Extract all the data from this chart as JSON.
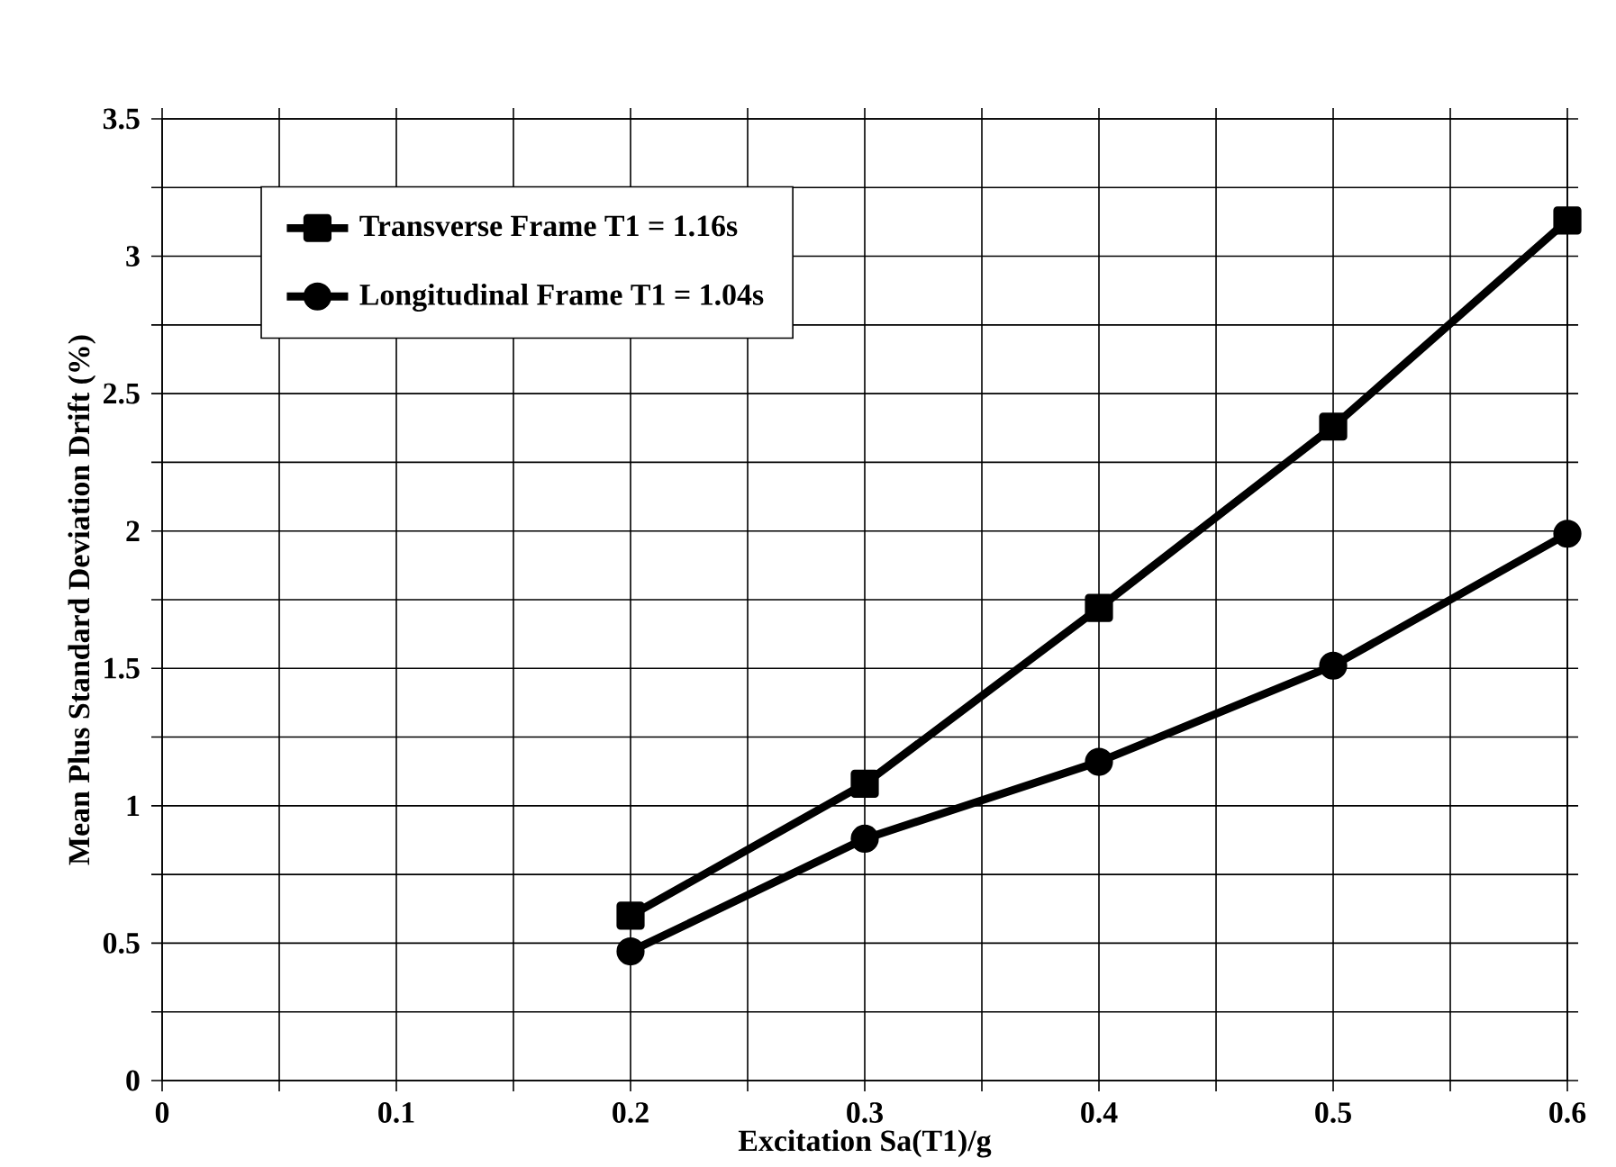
{
  "chart_data": {
    "type": "line",
    "xlabel": "Excitation    Sa(T1)/g",
    "ylabel": "Mean Plus Standard Deviation Drift (%)",
    "x": [
      0.2,
      0.3,
      0.4,
      0.5,
      0.6
    ],
    "series": [
      {
        "name": "Transverse Frame     T1 = 1.16s",
        "color": "#000000",
        "marker": "square",
        "values": [
          0.6,
          1.08,
          1.72,
          2.38,
          3.13
        ]
      },
      {
        "name": "Longitudinal Frame   T1 = 1.04s",
        "color": "#000000",
        "marker": "circle",
        "values": [
          0.47,
          0.88,
          1.16,
          1.51,
          1.99
        ]
      }
    ],
    "xlim": [
      0,
      0.6
    ],
    "ylim": [
      0,
      3.5
    ],
    "xticks": [
      0,
      {
        "value": 0.05,
        "label": null
      },
      0.1,
      {
        "value": 0.15,
        "label": null
      },
      0.2,
      {
        "value": 0.25,
        "label": null
      },
      0.3,
      {
        "value": 0.35,
        "label": null
      },
      0.4,
      {
        "value": 0.45,
        "label": null
      },
      0.5,
      {
        "value": 0.55,
        "label": null
      },
      0.6
    ],
    "yticks": [
      0,
      {
        "value": 0.25,
        "label": null
      },
      0.5,
      {
        "value": 0.75,
        "label": null
      },
      1,
      {
        "value": 1.25,
        "label": null
      },
      1.5,
      {
        "value": 1.75,
        "label": null
      },
      2,
      {
        "value": 2.25,
        "label": null
      },
      2.5,
      {
        "value": 2.75,
        "label": null
      },
      3,
      {
        "value": 3.25,
        "label": null
      },
      3.5
    ],
    "grid": true,
    "legend": "top left",
    "line_style": "solid"
  }
}
